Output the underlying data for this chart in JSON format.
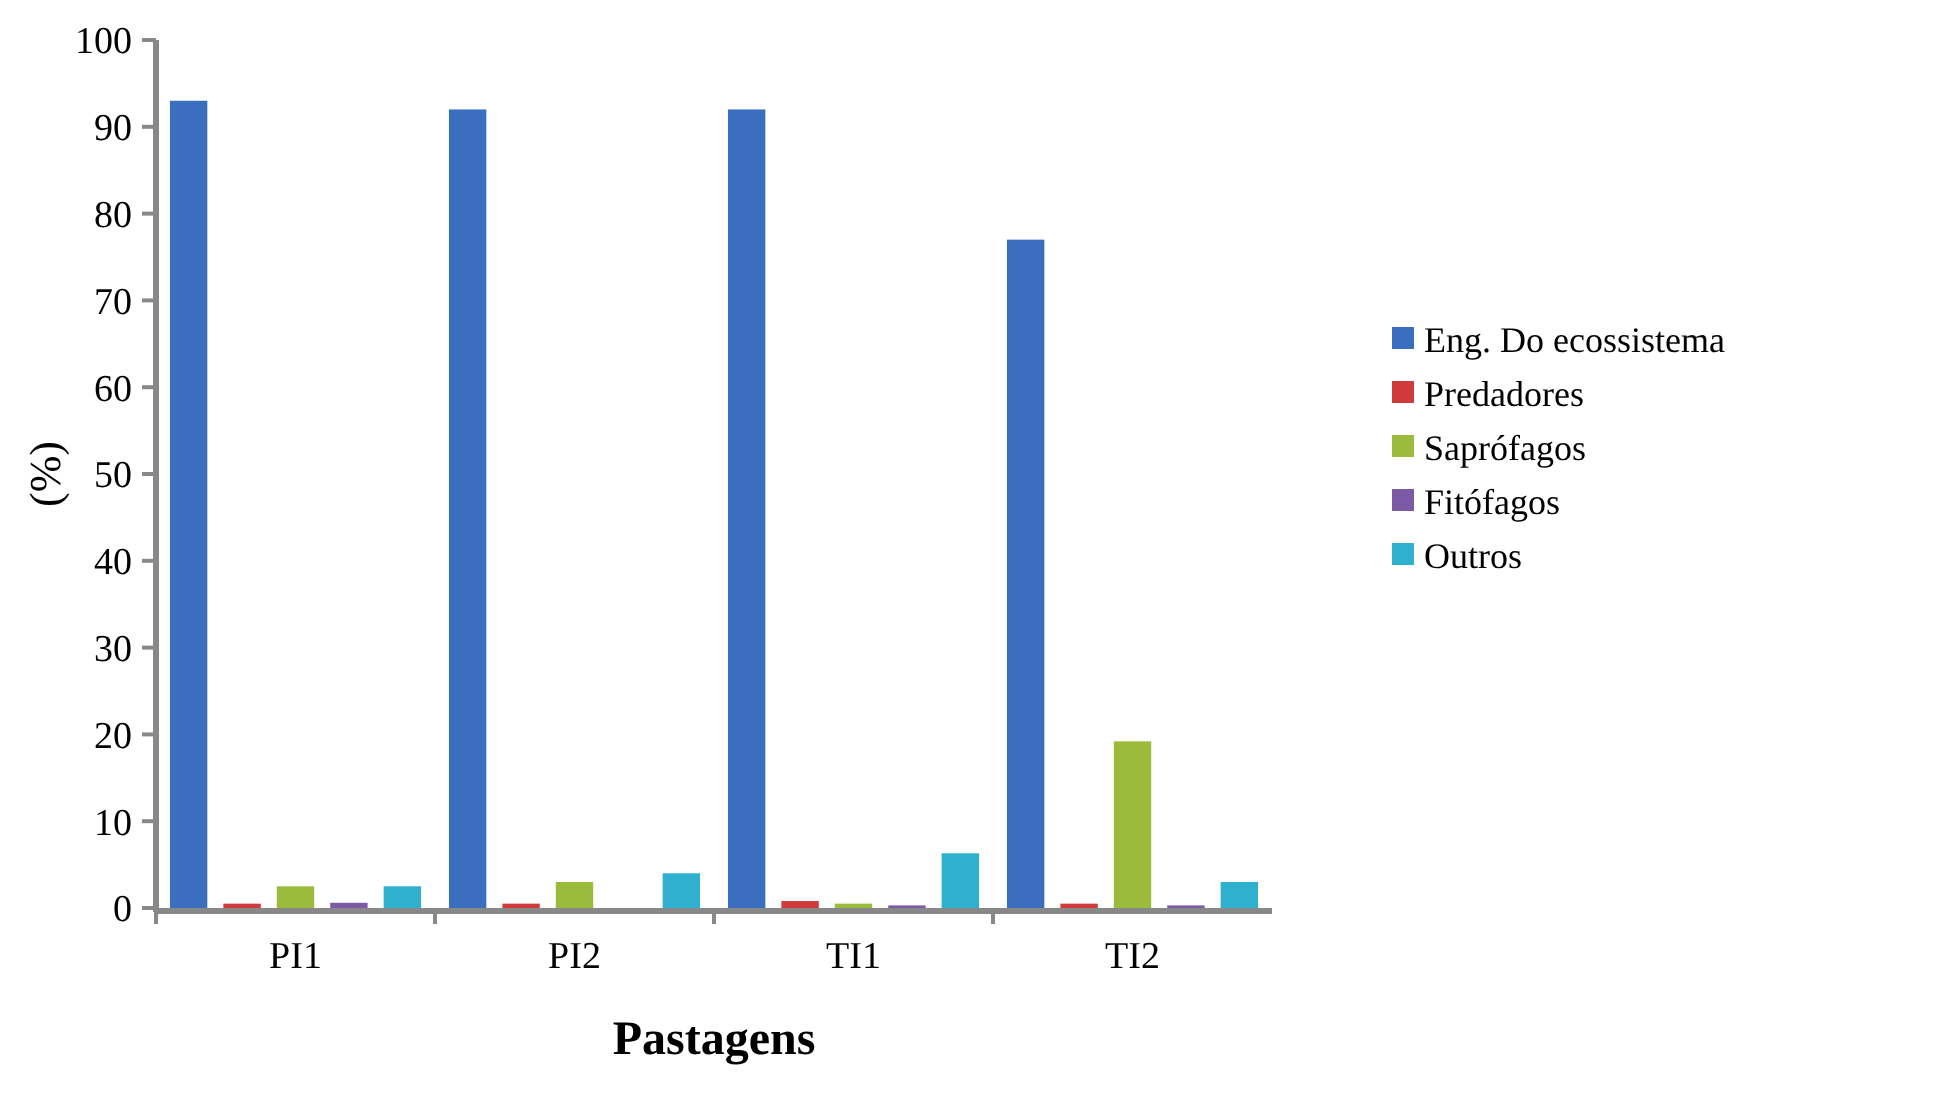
{
  "chart_data": {
    "type": "bar",
    "xlabel": "Pastagens",
    "ylabel": "(%)",
    "categories": [
      "PI1",
      "PI2",
      "TI1",
      "TI2"
    ],
    "series": [
      {
        "name": "Eng. Do ecossistema",
        "color": "#3a6fc0",
        "values": [
          93,
          92,
          92,
          77
        ]
      },
      {
        "name": "Predadores",
        "color": "#d03a3a",
        "values": [
          0.5,
          0.5,
          0.8,
          0.5
        ]
      },
      {
        "name": "Saprófagos",
        "color": "#9bbb3c",
        "values": [
          2.5,
          3,
          0.5,
          19.2
        ]
      },
      {
        "name": "Fitófagos",
        "color": "#7e59a6",
        "values": [
          0.6,
          0,
          0.3,
          0.3
        ]
      },
      {
        "name": "Outros",
        "color": "#2fb0cf",
        "values": [
          2.5,
          4,
          6.3,
          3
        ]
      }
    ],
    "ylim": [
      0,
      100
    ],
    "yticks": [
      0,
      10,
      20,
      30,
      40,
      50,
      60,
      70,
      80,
      90,
      100
    ],
    "legend": "right",
    "grid": false
  }
}
